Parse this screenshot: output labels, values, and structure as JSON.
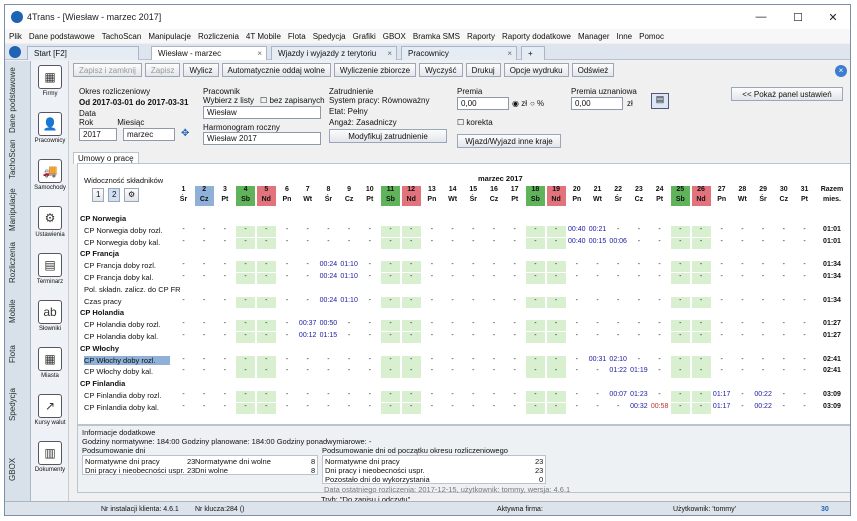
{
  "window": {
    "title": "4Trans - [Wiesław - marzec 2017]",
    "min": "—",
    "max": "☐",
    "close": "✕"
  },
  "menu": [
    "Plik",
    "Dane podstawowe",
    "TachoScan",
    "Manipulacje",
    "Rozliczenia",
    "4T Mobile",
    "Flota",
    "Spedycja",
    "Grafiki",
    "GBOX",
    "Bramka SMS",
    "Raporty",
    "Raporty dodatkowe",
    "Manager",
    "Inne",
    "Pomoc"
  ],
  "tabs": [
    {
      "label": "Start [F2]"
    },
    {
      "label": "Wiesław - marzec"
    },
    {
      "label": "Wjazdy i wyjazdy z terytoriu"
    },
    {
      "label": "Pracownicy"
    }
  ],
  "sidebar": [
    "Dane podstawowe",
    "TachoScan",
    "Manipulacje",
    "Rozliczenia",
    "Mobile",
    "Flota",
    "Spedycja",
    "GBOX"
  ],
  "iconcol": [
    {
      "label": "Firmy",
      "icon": "▦"
    },
    {
      "label": "Pracownicy",
      "icon": "👤"
    },
    {
      "label": "Samochody",
      "icon": "🚚"
    },
    {
      "label": "Ustawienia",
      "icon": "⚙"
    },
    {
      "label": "Terminarz",
      "icon": "▤"
    },
    {
      "label": "Słowniki",
      "icon": "ab"
    },
    {
      "label": "Miasta",
      "icon": "▦"
    },
    {
      "label": "Kursy walut",
      "icon": "↗"
    },
    {
      "label": "Dokumenty",
      "icon": "▥"
    }
  ],
  "toolbar": {
    "save_close": "Zapisz i zamknij",
    "save": "Zapisz",
    "clear": "Wylicz",
    "auto": "Automatycznie oddaj wolne",
    "calc_all": "Wyliczenie zbiorcze",
    "clean": "Wyczyść",
    "print": "Drukuj",
    "print_opts": "Opcje wydruku",
    "refresh": "Odśwież",
    "show_panel": "<< Pokaż panel ustawień"
  },
  "period": {
    "label": "Okres rozliczeniowy",
    "from_label": "Od",
    "from": "2017-03-01",
    "to_label": "do",
    "to": "2017-03-31",
    "date_label": "Data",
    "year_label": "Rok",
    "year": "2017",
    "month_label": "Miesiąc",
    "month": "marzec"
  },
  "employee": {
    "label": "Pracownik",
    "choose": "Wybierz z listy",
    "name": "Wiesław",
    "no_entries": "bez zapisanych",
    "schedule_label": "Harmonogram roczny",
    "schedule": "Wiesław   2017"
  },
  "employment": {
    "label": "Zatrudnienie",
    "system": "System pracy: Równoważny",
    "etat": "Etat: Pełny",
    "grant": "Angaż: Zasadniczy",
    "modify": "Modyfikuj zatrudnienie"
  },
  "bonus": {
    "label": "Premia",
    "value": "0,00",
    "zl": "zł",
    "pct": "%",
    "disc_label": "Premia uznaniowa",
    "disc_value": "0,00",
    "disc_zl": "zł",
    "correction": "korekta",
    "entry_exit": "Wjazd/Wyjazd inne kraje"
  },
  "section_tab": "Umowy o pracę",
  "visibility_label": "Widoczność składników",
  "month_header": "marzec 2017",
  "days": [
    "1",
    "2",
    "3",
    "4",
    "5",
    "6",
    "7",
    "8",
    "9",
    "10",
    "11",
    "12",
    "13",
    "14",
    "15",
    "16",
    "17",
    "18",
    "19",
    "20",
    "21",
    "22",
    "23",
    "24",
    "25",
    "26",
    "27",
    "28",
    "29",
    "30",
    "31"
  ],
  "weekdays": [
    "Śr",
    "Cz",
    "Pt",
    "Sb",
    "Nd",
    "Pn",
    "Wt",
    "Śr",
    "Cz",
    "Pt",
    "Sb",
    "Nd",
    "Pn",
    "Wt",
    "Śr",
    "Cz",
    "Pt",
    "Sb",
    "Nd",
    "Pn",
    "Wt",
    "Śr",
    "Cz",
    "Pt",
    "Sb",
    "Nd",
    "Pn",
    "Wt",
    "Śr",
    "Cz",
    "Pt"
  ],
  "total_header": "Razem",
  "total_sub": "mies.",
  "rows": [
    {
      "type": "group",
      "label": "CP Norwegia"
    },
    {
      "type": "row",
      "label": "CP Norwegia doby rozl.",
      "vals": {
        "20": "00:40",
        "21": "00:21"
      },
      "total": "01:01"
    },
    {
      "type": "row",
      "label": "CP Norwegia doby kal.",
      "vals": {
        "20": "00:40",
        "21": "00:15",
        "22": "00:06"
      },
      "total": "01:01"
    },
    {
      "type": "group",
      "label": "CP Francja"
    },
    {
      "type": "row",
      "label": "CP Francja doby rozl.",
      "vals": {
        "8": "00:24",
        "9": "01:10"
      },
      "total": "01:34"
    },
    {
      "type": "row",
      "label": "CP Francja doby kal.",
      "vals": {
        "8": "00:24",
        "9": "01:10"
      },
      "total": "01:34"
    },
    {
      "type": "plain",
      "label": "Pol. składn. zalicz. do CP FR"
    },
    {
      "type": "row",
      "label": "Czas pracy",
      "vals": {
        "8": "00:24",
        "9": "01:10"
      },
      "total": "01:34"
    },
    {
      "type": "group",
      "label": "CP Holandia"
    },
    {
      "type": "row",
      "label": "CP Holandia doby rozl.",
      "vals": {
        "7": "00:37",
        "8": "00:50"
      },
      "total": "01:27"
    },
    {
      "type": "row",
      "label": "CP Holandia doby kal.",
      "vals": {
        "7": "00:12",
        "8": "01:15"
      },
      "total": "01:27"
    },
    {
      "type": "group",
      "label": "CP Włochy"
    },
    {
      "type": "row",
      "label": "CP Włochy doby rozl.",
      "vals": {
        "21": "00:31",
        "22": "02:10"
      },
      "total": "02:41",
      "sel": true
    },
    {
      "type": "row",
      "label": "CP Włochy doby kal.",
      "vals": {
        "22": "01:22",
        "23": "01:19"
      },
      "total": "02:41"
    },
    {
      "type": "group",
      "label": "CP Finlandia"
    },
    {
      "type": "row",
      "label": "CP Finlandia doby rozl.",
      "vals": {
        "22": "00:07",
        "23": "01:23",
        "27": "01:17",
        "29": "00:22"
      },
      "total": "03:09"
    },
    {
      "type": "row",
      "label": "CP Finlandia doby kal.",
      "vals": {
        "23": "00:32",
        "24": "00:58",
        "27": "01:17",
        "29": "00:22"
      },
      "total": "03:09"
    }
  ],
  "info": {
    "title": "Informacje dodatkowe",
    "line": "Godziny normatywne: 184:00   Godziny planowane: 184:00     Godziny ponadwymiarowe: -",
    "sum_days": "Podsumowanie dni",
    "a1": "Normatywne dni pracy",
    "a1v": "23",
    "a2": "Normatywne dni wolne",
    "a2v": "8",
    "a3": "Dni pracy i nieobecności uspr.",
    "a3v": "23",
    "a4": "Dni wolne",
    "a4v": "8",
    "sum_period": "Podsumowanie dni od początku okresu rozliczeniowego",
    "b1": "Normatywne dni pracy",
    "b1v": "23",
    "b2": "Dni pracy i nieobecności uspr.",
    "b2v": "23",
    "b3": "Pozostało dni do wykorzystania",
    "b3v": "0",
    "last": "Data ostatniego rozliczenia: 2017-12-15, użytkownik: tommy, wersja: 4.6.1",
    "mode": "Tryb: \"Do zapisu i odczytu\""
  },
  "status": {
    "install": "Nr instalacji klienta: 4.6.1",
    "key": "Nr klucza:284 ()",
    "firm": "Aktywna firma:",
    "user": "Użytkownik: 'tommy'",
    "count": "30"
  },
  "colors": {
    "weekend_sat": "#5fb35a",
    "weekend_sun": "#e2737d",
    "holiday": "#8fb1d8",
    "green_cell": "#d8f0d0",
    "accent": "#1e63b4"
  }
}
